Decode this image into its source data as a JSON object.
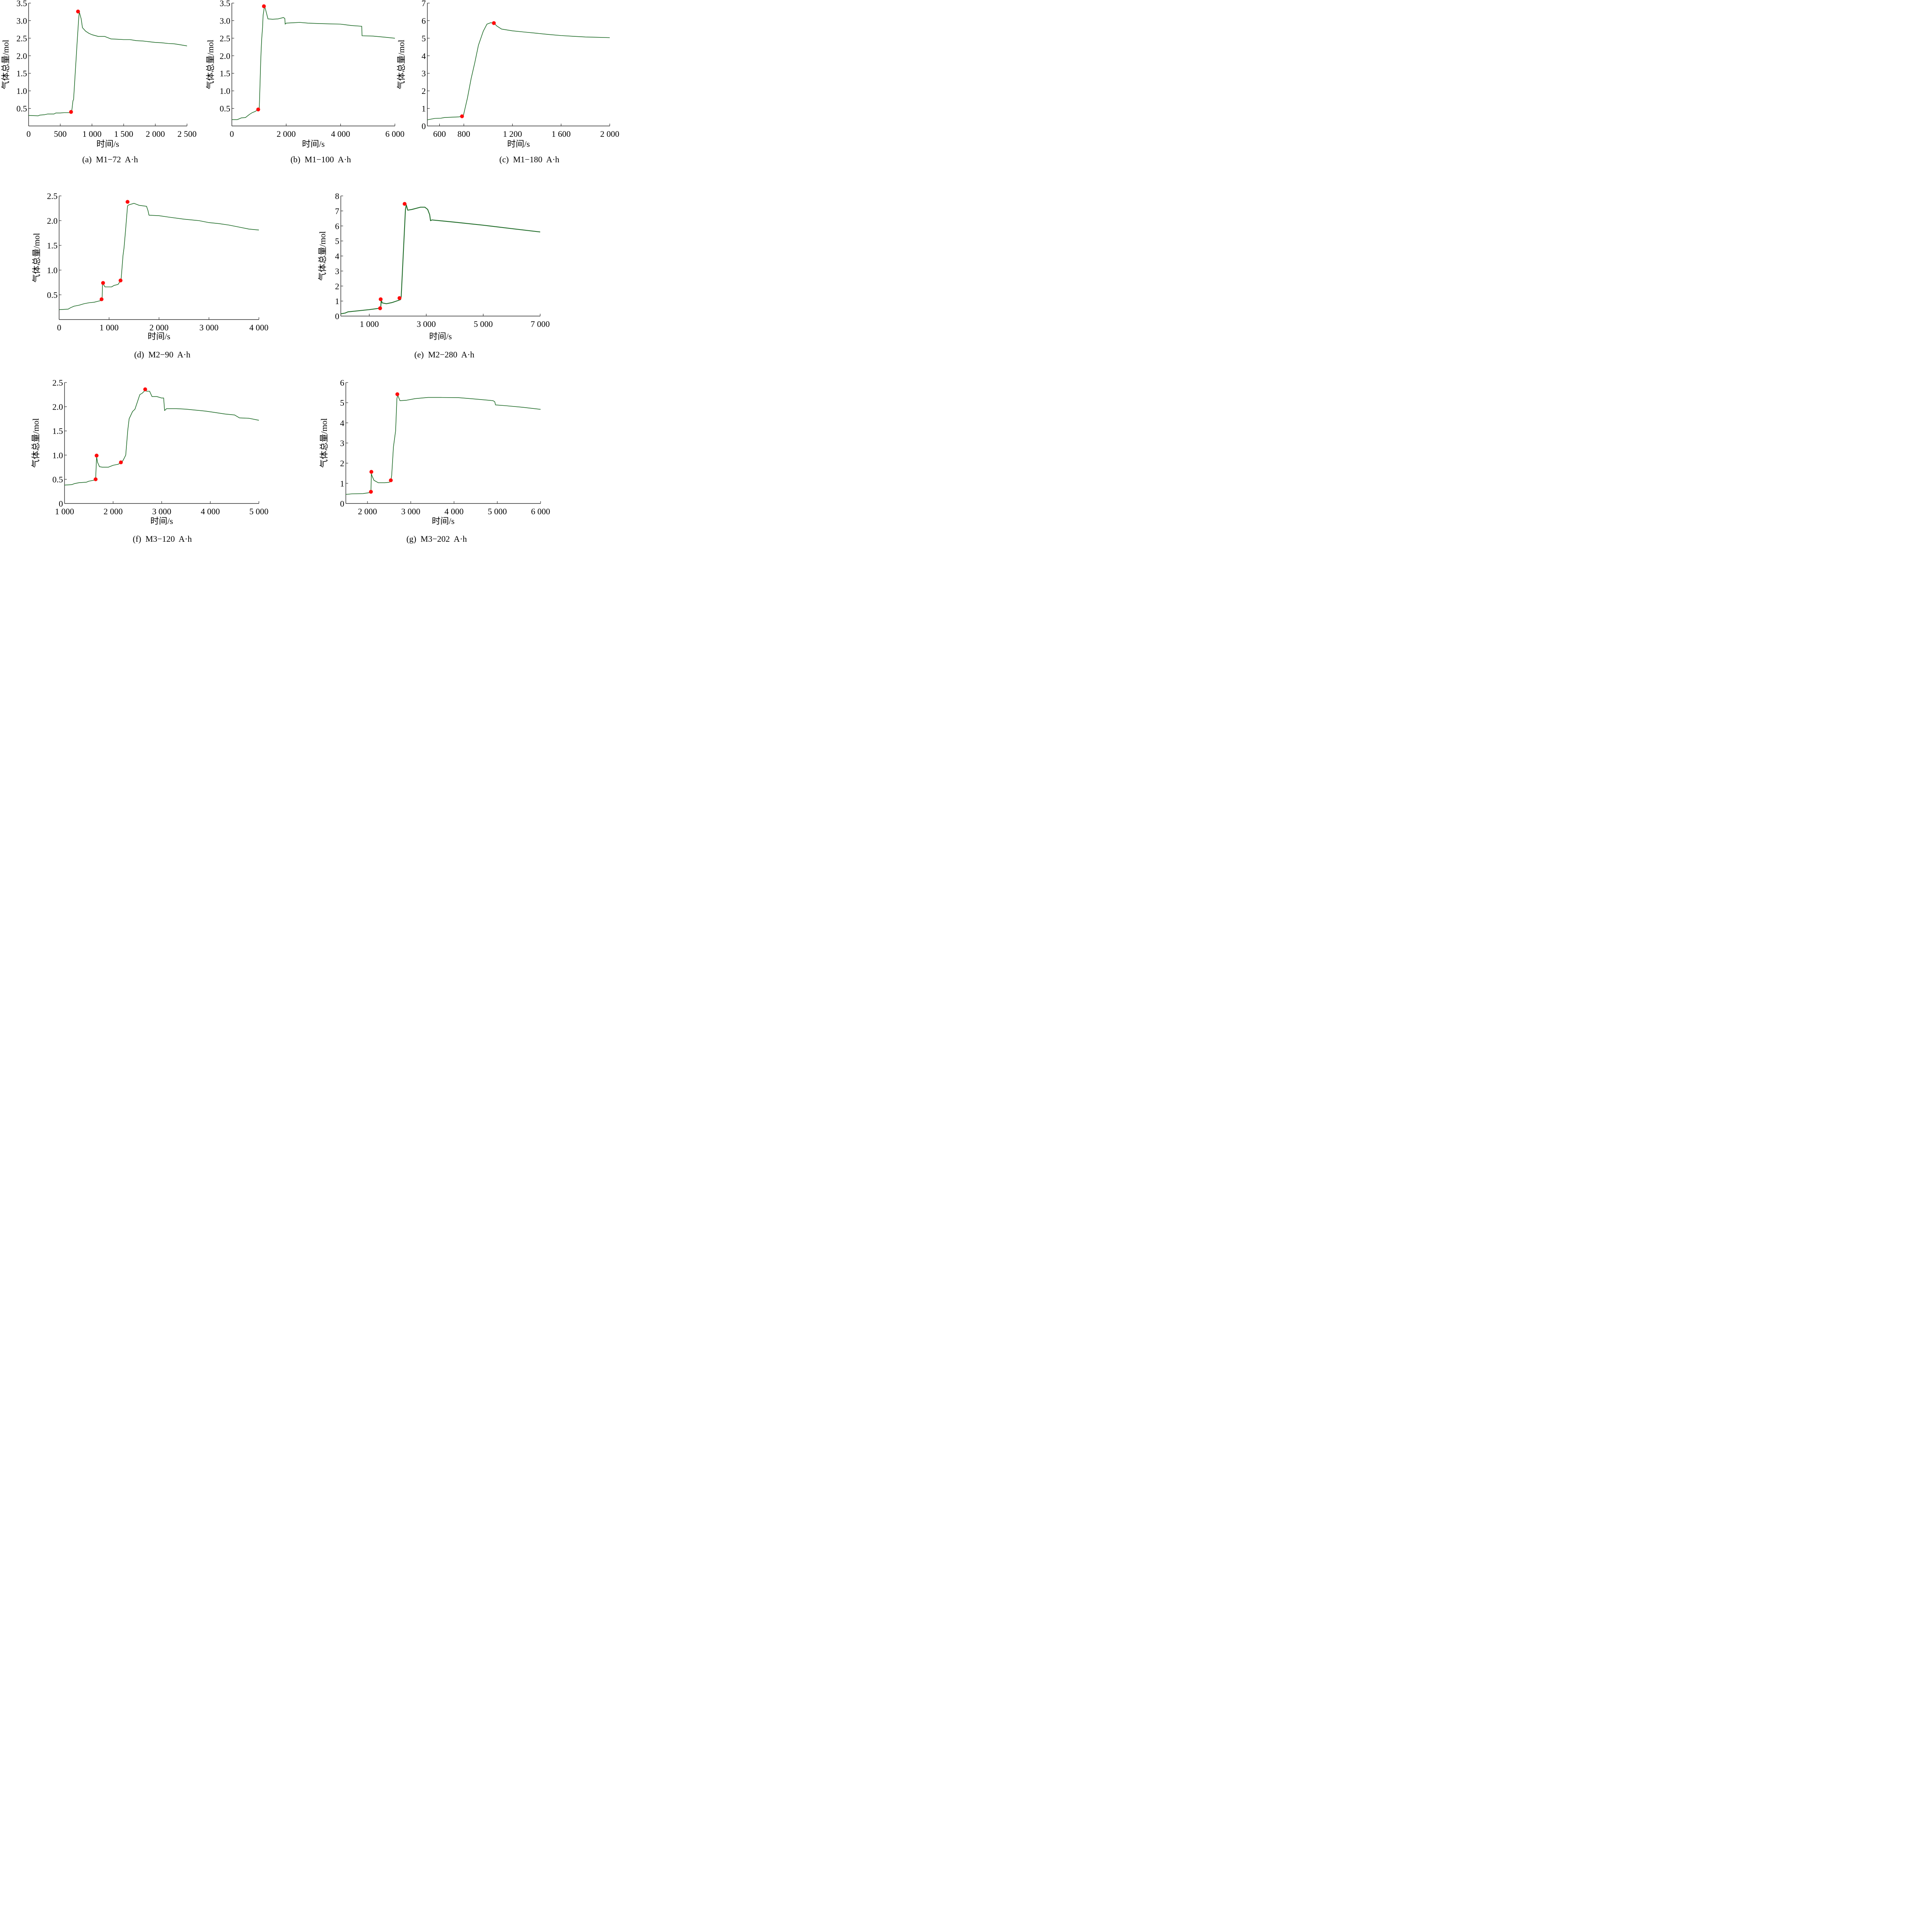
{
  "colors": {
    "line": "#1e6b27",
    "marker": "#ff0d0d",
    "axis": "#000000"
  },
  "chart_data": [
    {
      "id": "a",
      "type": "line",
      "caption": "(a)  M1−72  A·h",
      "xlabel": "时间/s",
      "ylabel": "气体总量/mol",
      "xlim": [
        0,
        2500
      ],
      "ylim": [
        0,
        3.5
      ],
      "xticks": [
        0,
        500,
        1000,
        1500,
        2000,
        2500
      ],
      "xtick_labels": [
        "0",
        "500",
        "1 000",
        "1 500",
        "2 000",
        "2 500"
      ],
      "yticks": [
        0.5,
        1.0,
        1.5,
        2.0,
        2.5,
        3.0,
        3.5
      ],
      "ytick_labels": [
        "0.5",
        "1.0",
        "1.5",
        "2.0",
        "2.5",
        "3.0",
        "3.5"
      ],
      "grid": false,
      "series": [
        {
          "name": "气体总量",
          "x": [
            0,
            150,
            180,
            250,
            300,
            400,
            430,
            500,
            560,
            660,
            680,
            700,
            710,
            760,
            770,
            790,
            800,
            830,
            850,
            900,
            950,
            1000,
            1100,
            1200,
            1300,
            1400,
            1500,
            1600,
            1700,
            1800,
            1900,
            2000,
            2100,
            2200,
            2300,
            2400,
            2500
          ],
          "y": [
            0.3,
            0.29,
            0.31,
            0.32,
            0.34,
            0.34,
            0.37,
            0.37,
            0.38,
            0.38,
            0.4,
            0.72,
            0.75,
            2.2,
            2.5,
            3.05,
            3.25,
            3.05,
            2.8,
            2.7,
            2.64,
            2.6,
            2.55,
            2.55,
            2.48,
            2.47,
            2.46,
            2.46,
            2.43,
            2.42,
            2.4,
            2.38,
            2.37,
            2.35,
            2.34,
            2.31,
            2.28
          ]
        }
      ],
      "markers": [
        {
          "x": 670,
          "y": 0.4
        },
        {
          "x": 780,
          "y": 3.26
        }
      ]
    },
    {
      "id": "b",
      "type": "line",
      "caption": "(b)  M1−100  A·h",
      "xlabel": "时间/s",
      "ylabel": "气体总量/mol",
      "xlim": [
        0,
        6000
      ],
      "ylim": [
        0,
        3.5
      ],
      "xticks": [
        0,
        2000,
        4000,
        6000
      ],
      "xtick_labels": [
        "0",
        "2 000",
        "4 000",
        "6 000"
      ],
      "yticks": [
        0.5,
        1.0,
        1.5,
        2.0,
        2.5,
        3.0,
        3.5
      ],
      "ytick_labels": [
        "0.5",
        "1.0",
        "1.5",
        "2.0",
        "2.5",
        "3.0",
        "3.5"
      ],
      "grid": false,
      "series": [
        {
          "name": "气体总量",
          "x": [
            0,
            200,
            350,
            500,
            650,
            750,
            850,
            980,
            1010,
            1030,
            1060,
            1080,
            1100,
            1130,
            1150,
            1190,
            1220,
            1280,
            1330,
            1500,
            1700,
            1900,
            1950,
            1960,
            2000,
            2500,
            2800,
            3100,
            3500,
            4000,
            4400,
            4780,
            4790,
            5200,
            5600,
            6000
          ],
          "y": [
            0.18,
            0.18,
            0.23,
            0.24,
            0.33,
            0.38,
            0.41,
            0.47,
            0.5,
            1.0,
            1.8,
            2.2,
            2.5,
            2.8,
            3.15,
            3.35,
            3.38,
            3.2,
            3.05,
            3.04,
            3.05,
            3.09,
            3.06,
            2.9,
            2.93,
            2.95,
            2.93,
            2.92,
            2.91,
            2.9,
            2.86,
            2.84,
            2.57,
            2.56,
            2.53,
            2.5
          ]
        }
      ],
      "markers": [
        {
          "x": 970,
          "y": 0.47
        },
        {
          "x": 1180,
          "y": 3.41
        }
      ]
    },
    {
      "id": "c",
      "type": "line",
      "caption": "(c)  M1−180  A·h",
      "xlabel": "时间/s",
      "ylabel": "气体总量/mol",
      "xlim": [
        500,
        2000
      ],
      "ylim": [
        0,
        7
      ],
      "xticks": [
        600,
        800,
        1200,
        1600,
        2000
      ],
      "xtick_labels": [
        "600",
        "800",
        "1 200",
        "1 600",
        "2 000"
      ],
      "yticks": [
        0,
        1,
        2,
        3,
        4,
        5,
        6,
        7
      ],
      "ytick_labels": [
        "0",
        "1",
        "2",
        "3",
        "4",
        "5",
        "6",
        "7"
      ],
      "grid": false,
      "series": [
        {
          "name": "气体总量",
          "x": [
            500,
            560,
            610,
            640,
            700,
            760,
            795,
            830,
            860,
            890,
            920,
            960,
            990,
            1020,
            1050,
            1070,
            1110,
            1200,
            1300,
            1400,
            1500,
            1600,
            1700,
            1800,
            1900,
            2000
          ],
          "y": [
            0.35,
            0.43,
            0.44,
            0.48,
            0.5,
            0.52,
            0.55,
            1.6,
            2.7,
            3.6,
            4.6,
            5.4,
            5.8,
            5.88,
            5.85,
            5.7,
            5.52,
            5.42,
            5.35,
            5.28,
            5.21,
            5.15,
            5.11,
            5.07,
            5.05,
            5.03
          ]
        }
      ],
      "markers": [
        {
          "x": 785,
          "y": 0.55
        },
        {
          "x": 1047,
          "y": 5.86
        }
      ]
    },
    {
      "id": "d",
      "type": "line",
      "caption": "(d)  M2−90  A·h",
      "xlabel": "时间/s",
      "ylabel": "气体总量/mol",
      "xlim": [
        0,
        4000
      ],
      "ylim": [
        0,
        2.5
      ],
      "xticks": [
        0,
        1000,
        2000,
        3000,
        4000
      ],
      "xtick_labels": [
        "0",
        "1 000",
        "2 000",
        "3 000",
        "4 000"
      ],
      "yticks": [
        0.5,
        1.0,
        1.5,
        2.0,
        2.5
      ],
      "ytick_labels": [
        "0.5",
        "1.0",
        "1.5",
        "2.0",
        "2.5"
      ],
      "grid": false,
      "series": [
        {
          "name": "气体总量",
          "x": [
            0,
            180,
            230,
            300,
            400,
            500,
            600,
            700,
            780,
            860,
            870,
            880,
            920,
            1050,
            1100,
            1180,
            1240,
            1280,
            1300,
            1330,
            1370,
            1400,
            1500,
            1600,
            1750,
            1780,
            1800,
            2000,
            2200,
            2500,
            2800,
            3000,
            3200,
            3400,
            3600,
            3800,
            4000
          ],
          "y": [
            0.2,
            0.21,
            0.24,
            0.27,
            0.29,
            0.32,
            0.34,
            0.35,
            0.37,
            0.39,
            0.74,
            0.72,
            0.66,
            0.66,
            0.69,
            0.71,
            0.8,
            1.3,
            1.45,
            1.8,
            2.3,
            2.32,
            2.35,
            2.31,
            2.29,
            2.2,
            2.11,
            2.1,
            2.07,
            2.03,
            2.0,
            1.96,
            1.94,
            1.91,
            1.87,
            1.83,
            1.81
          ]
        }
      ],
      "markers": [
        {
          "x": 850,
          "y": 0.41
        },
        {
          "x": 880,
          "y": 0.74
        },
        {
          "x": 1230,
          "y": 0.79
        },
        {
          "x": 1370,
          "y": 2.38
        }
      ]
    },
    {
      "id": "e",
      "type": "line",
      "caption": "(e)  M2−280  A·h",
      "xlabel": "时间/s",
      "ylabel": "气体总量/mol",
      "xlim": [
        0,
        7000
      ],
      "ylim": [
        0,
        8
      ],
      "xticks": [
        1000,
        3000,
        5000,
        7000
      ],
      "xtick_labels": [
        "1 000",
        "3 000",
        "5 000",
        "7 000"
      ],
      "yticks": [
        0,
        1,
        2,
        3,
        4,
        5,
        6,
        7,
        8
      ],
      "ytick_labels": [
        "0",
        "1",
        "2",
        "3",
        "4",
        "5",
        "6",
        "7",
        "8"
      ],
      "grid": false,
      "series": [
        {
          "name": "气体总量",
          "x": [
            0,
            150,
            250,
            500,
            1000,
            1400,
            1420,
            1450,
            1600,
            1800,
            2000,
            2100,
            2120,
            2270,
            2300,
            2350,
            2500,
            2800,
            2950,
            3050,
            3120,
            3150,
            3200,
            4000,
            5000,
            6000,
            7000
          ],
          "y": [
            0.15,
            0.2,
            0.28,
            0.33,
            0.43,
            0.53,
            1.1,
            0.88,
            0.82,
            0.9,
            1.03,
            1.1,
            1.3,
            7.1,
            7.4,
            7.05,
            7.1,
            7.25,
            7.25,
            7.1,
            6.75,
            6.35,
            6.4,
            6.25,
            6.05,
            5.82,
            5.6
          ]
        }
      ],
      "markers": [
        {
          "x": 1380,
          "y": 0.52
        },
        {
          "x": 1400,
          "y": 1.12
        },
        {
          "x": 2060,
          "y": 1.2
        },
        {
          "x": 2240,
          "y": 7.47
        }
      ]
    },
    {
      "id": "f",
      "type": "line",
      "caption": "(f)  M3−120  A·h",
      "xlabel": "时间/s",
      "ylabel": "气体总量/mol",
      "xlim": [
        1000,
        5000
      ],
      "ylim": [
        0,
        2.5
      ],
      "xticks": [
        1000,
        2000,
        3000,
        4000,
        5000
      ],
      "xtick_labels": [
        "1 000",
        "2 000",
        "3 000",
        "4 000",
        "5 000"
      ],
      "yticks": [
        0,
        0.5,
        1.0,
        1.5,
        2.0,
        2.5
      ],
      "ytick_labels": [
        "0",
        "0.5",
        "1.0",
        "1.5",
        "2.0",
        "2.5"
      ],
      "grid": false,
      "series": [
        {
          "name": "气体总量",
          "x": [
            1000,
            1150,
            1200,
            1300,
            1450,
            1500,
            1600,
            1640,
            1660,
            1680,
            1720,
            1780,
            1900,
            2000,
            2100,
            2180,
            2220,
            2260,
            2300,
            2330,
            2400,
            2450,
            2500,
            2550,
            2600,
            2650,
            2700,
            2750,
            2800,
            2900,
            3000,
            3040,
            3060,
            3100,
            3300,
            3500,
            3700,
            3900,
            4100,
            4300,
            4500,
            4600,
            4800,
            5000
          ],
          "y": [
            0.38,
            0.39,
            0.41,
            0.43,
            0.44,
            0.46,
            0.48,
            0.5,
            0.97,
            0.85,
            0.76,
            0.75,
            0.75,
            0.79,
            0.81,
            0.85,
            0.92,
            1.0,
            1.5,
            1.75,
            1.9,
            1.95,
            2.1,
            2.25,
            2.28,
            2.33,
            2.32,
            2.32,
            2.21,
            2.21,
            2.18,
            2.18,
            1.92,
            1.96,
            1.96,
            1.95,
            1.93,
            1.91,
            1.88,
            1.85,
            1.83,
            1.77,
            1.76,
            1.72
          ]
        }
      ],
      "markers": [
        {
          "x": 1640,
          "y": 0.5
        },
        {
          "x": 1660,
          "y": 0.99
        },
        {
          "x": 2160,
          "y": 0.85
        },
        {
          "x": 2660,
          "y": 2.36
        }
      ]
    },
    {
      "id": "g",
      "type": "line",
      "caption": "(g)  M3−202  A·h",
      "xlabel": "时间/s",
      "ylabel": "气体总量/mol",
      "xlim": [
        1500,
        6000
      ],
      "ylim": [
        0,
        6
      ],
      "xticks": [
        2000,
        3000,
        4000,
        5000,
        6000
      ],
      "xtick_labels": [
        "2 000",
        "3 000",
        "4 000",
        "5 000",
        "6 000"
      ],
      "yticks": [
        0,
        1,
        2,
        3,
        4,
        5,
        6
      ],
      "ytick_labels": [
        "0",
        "1",
        "2",
        "3",
        "4",
        "5",
        "6"
      ],
      "grid": false,
      "series": [
        {
          "name": "气体总量",
          "x": [
            1500,
            1650,
            1900,
            2080,
            2090,
            2100,
            2150,
            2250,
            2400,
            2500,
            2540,
            2560,
            2600,
            2650,
            2680,
            2700,
            2750,
            2900,
            3100,
            3400,
            3700,
            4100,
            4500,
            4900,
            4940,
            4960,
            5200,
            5600,
            6000
          ],
          "y": [
            0.45,
            0.48,
            0.49,
            0.55,
            1.5,
            1.4,
            1.15,
            1.03,
            1.03,
            1.05,
            1.1,
            1.4,
            2.8,
            3.6,
            5.2,
            5.38,
            5.1,
            5.12,
            5.2,
            5.26,
            5.26,
            5.25,
            5.18,
            5.1,
            5.05,
            4.89,
            4.85,
            4.77,
            4.67
          ]
        }
      ],
      "markers": [
        {
          "x": 2080,
          "y": 0.58
        },
        {
          "x": 2090,
          "y": 1.57
        },
        {
          "x": 2540,
          "y": 1.15
        },
        {
          "x": 2690,
          "y": 5.42
        }
      ]
    }
  ]
}
